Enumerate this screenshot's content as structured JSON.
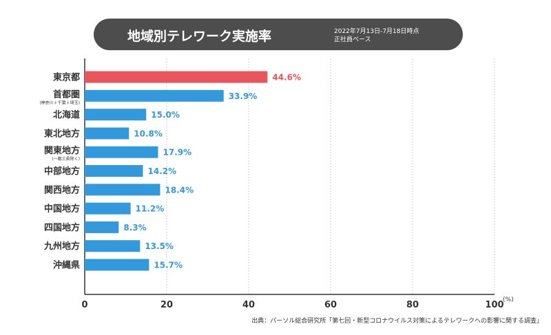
{
  "title": "地域別テレワーク実施率",
  "subtitle_lines": [
    "2022年7月13日-7月18日時点",
    "正社員ベース"
  ],
  "source": "出典：パーソル総合研究所「第七回・新型コロナウイルス対策によるテレワークへの影響に関する調査」",
  "colors": {
    "highlight": "#e8555a",
    "bar": "#3399dd",
    "title_bg": "#4d4d4d"
  },
  "chart_data": {
    "type": "bar",
    "orientation": "horizontal",
    "categories": [
      "東京都",
      "首都圏",
      "北海道",
      "東北地方",
      "関東地方",
      "中部地方",
      "関西地方",
      "中国地方",
      "四国地方",
      "九州地方",
      "沖縄県"
    ],
    "category_notes": {
      "首都圏": "(神奈川＋千葉＋埼玉)",
      "関東地方": "(一都三県除く)"
    },
    "values": [
      44.6,
      33.9,
      15.0,
      10.8,
      17.9,
      14.2,
      18.4,
      11.2,
      8.3,
      13.5,
      15.7
    ],
    "value_labels": [
      "44.6%",
      "33.9%",
      "15.0%",
      "10.8%",
      "17.9%",
      "14.2%",
      "18.4%",
      "11.2%",
      "8.3%",
      "13.5%",
      "15.7%"
    ],
    "highlight": [
      "東京都"
    ],
    "xlim": [
      0,
      100
    ],
    "xticks": [
      0,
      20,
      40,
      60,
      80,
      100
    ],
    "xunit": "(%)",
    "grid": true
  }
}
